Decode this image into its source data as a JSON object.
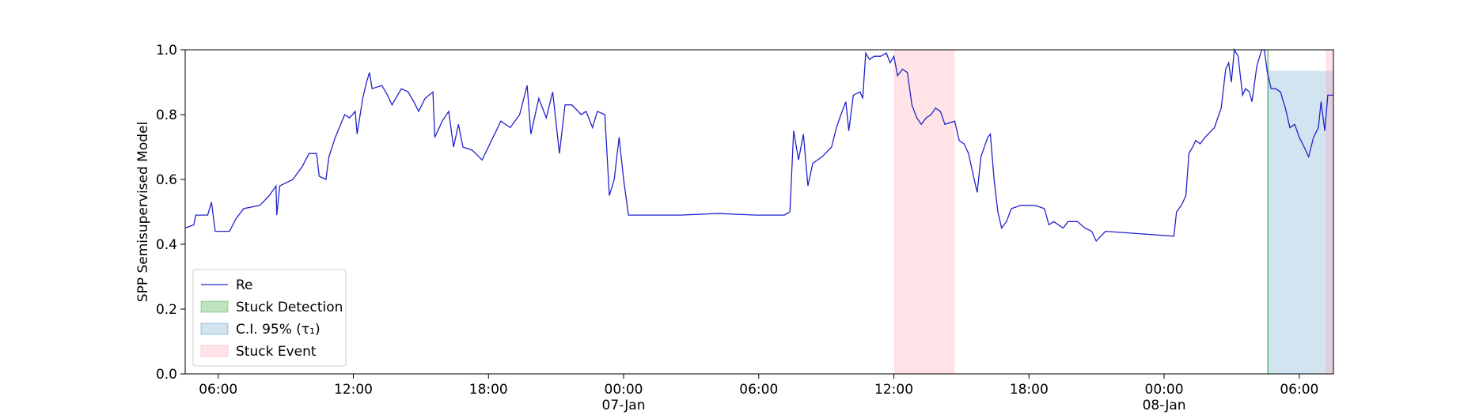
{
  "chart_data": {
    "type": "line",
    "y_label": "SPP Semisupervised Model",
    "xlim": [
      "1900-01-06 04:32",
      "1900-01-08 07:31"
    ],
    "ylim": [
      0,
      1
    ],
    "yticks": [
      {
        "value": 0,
        "label": "0.0"
      },
      0.2,
      0.4,
      0.6,
      0.8,
      {
        "value": 1,
        "label": "1.0"
      }
    ],
    "xticks": [
      {
        "value": "1900-01-06 06:00",
        "label": "06:00"
      },
      {
        "value": "1900-01-06 12:00",
        "label": "12:00"
      },
      {
        "value": "1900-01-06 18:00",
        "label": "18:00"
      },
      {
        "value": "1900-01-07 00:00",
        "label": "00:00\n07-Jan\n1900"
      },
      {
        "value": "1900-01-07 06:00",
        "label": "06:00"
      },
      {
        "value": "1900-01-07 12:00",
        "label": "12:00"
      },
      {
        "value": "1900-01-07 18:00",
        "label": "18:00"
      },
      {
        "value": "1900-01-08 00:00",
        "label": "00:00\n08-Jan"
      },
      {
        "value": "1900-01-08 06:00",
        "label": "06:00"
      }
    ],
    "legend": "lower left",
    "x": [
      "1900-01-06 04:32",
      "1900-01-06 04:55",
      "1900-01-06 05:00",
      "1900-01-06 05:32",
      "1900-01-06 05:42",
      "1900-01-06 05:52",
      "1900-01-06 06:30",
      "1900-01-06 06:48",
      "1900-01-06 07:08",
      "1900-01-06 07:51",
      "1900-01-06 08:16",
      "1900-01-06 08:34",
      "1900-01-06 08:36",
      "1900-01-06 08:44",
      "1900-01-06 09:19",
      "1900-01-06 09:44",
      "1900-01-06 10:02",
      "1900-01-06 10:22",
      "1900-01-06 10:29",
      "1900-01-06 10:47",
      "1900-01-06 10:55",
      "1900-01-06 11:12",
      "1900-01-06 11:37",
      "1900-01-06 11:50",
      "1900-01-06 12:05",
      "1900-01-06 12:10",
      "1900-01-06 12:25",
      "1900-01-06 12:35",
      "1900-01-06 12:43",
      "1900-01-06 12:50",
      "1900-01-06 13:16",
      "1900-01-06 13:31",
      "1900-01-06 13:43",
      "1900-01-06 14:08",
      "1900-01-06 14:26",
      "1900-01-06 14:41",
      "1900-01-06 14:54",
      "1900-01-06 15:11",
      "1900-01-06 15:32",
      "1900-01-06 15:37",
      "1900-01-06 15:57",
      "1900-01-06 16:14",
      "1900-01-06 16:27",
      "1900-01-06 16:40",
      "1900-01-06 16:52",
      "1900-01-06 17:17",
      "1900-01-06 17:43",
      "1900-01-06 18:08",
      "1900-01-06 18:33",
      "1900-01-06 18:58",
      "1900-01-06 19:23",
      "1900-01-06 19:43",
      "1900-01-06 19:53",
      "1900-01-06 20:14",
      "1900-01-06 20:34",
      "1900-01-06 20:51",
      "1900-01-06 21:09",
      "1900-01-06 21:24",
      "1900-01-06 21:42",
      "1900-01-06 22:07",
      "1900-01-06 22:20",
      "1900-01-06 22:37",
      "1900-01-06 22:50",
      "1900-01-06 23:10",
      "1900-01-06 23:22",
      "1900-01-06 23:35",
      "1900-01-06 23:48",
      "1900-01-07 00:00",
      "1900-01-07 00:13",
      "1900-01-07 02:31",
      "1900-01-07 04:12",
      "1900-01-07 05:53",
      "1900-01-07 07:08",
      "1900-01-07 07:23",
      "1900-01-07 07:33",
      "1900-01-07 07:46",
      "1900-01-07 07:59",
      "1900-01-07 08:11",
      "1900-01-07 08:24",
      "1900-01-07 08:49",
      "1900-01-07 09:14",
      "1900-01-07 09:27",
      "1900-01-07 09:39",
      "1900-01-07 09:52",
      "1900-01-07 10:00",
      "1900-01-07 10:12",
      "1900-01-07 10:30",
      "1900-01-07 10:37",
      "1900-01-07 10:45",
      "1900-01-07 10:55",
      "1900-01-07 11:07",
      "1900-01-07 11:25",
      "1900-01-07 11:40",
      "1900-01-07 11:50",
      "1900-01-07 12:00",
      "1900-01-07 12:10",
      "1900-01-07 12:23",
      "1900-01-07 12:36",
      "1900-01-07 12:48",
      "1900-01-07 13:01",
      "1900-01-07 13:13",
      "1900-01-07 13:26",
      "1900-01-07 13:39",
      "1900-01-07 13:51",
      "1900-01-07 14:04",
      "1900-01-07 14:16",
      "1900-01-07 14:42",
      "1900-01-07 14:54",
      "1900-01-07 15:07",
      "1900-01-07 15:19",
      "1900-01-07 15:32",
      "1900-01-07 15:42",
      "1900-01-07 15:52",
      "1900-01-07 16:10",
      "1900-01-07 16:17",
      "1900-01-07 16:27",
      "1900-01-07 16:37",
      "1900-01-07 16:47",
      "1900-01-07 17:00",
      "1900-01-07 17:13",
      "1900-01-07 17:38",
      "1900-01-07 18:16",
      "1900-01-07 18:41",
      "1900-01-07 18:53",
      "1900-01-07 19:06",
      "1900-01-07 19:31",
      "1900-01-07 19:44",
      "1900-01-07 20:09",
      "1900-01-07 20:29",
      "1900-01-07 20:47",
      "1900-01-07 20:59",
      "1900-01-07 21:24",
      "1900-01-08 00:26",
      "1900-01-08 00:33",
      "1900-01-08 00:46",
      "1900-01-08 00:58",
      "1900-01-08 01:06",
      "1900-01-08 01:16",
      "1900-01-08 01:24",
      "1900-01-08 01:36",
      "1900-01-08 01:49",
      "1900-01-08 02:14",
      "1900-01-08 02:32",
      "1900-01-08 02:44",
      "1900-01-08 02:52",
      "1900-01-08 02:59",
      "1900-01-08 03:07",
      "1900-01-08 03:17",
      "1900-01-08 03:29",
      "1900-01-08 03:37",
      "1900-01-08 03:47",
      "1900-01-08 03:54",
      "1900-01-08 04:07",
      "1900-01-08 04:20",
      "1900-01-08 04:27",
      "1900-01-08 04:35",
      "1900-01-08 04:45",
      "1900-01-08 04:57",
      "1900-01-08 05:10",
      "1900-01-08 05:23",
      "1900-01-08 05:35",
      "1900-01-08 05:48",
      "1900-01-08 06:00",
      "1900-01-08 06:13",
      "1900-01-08 06:25",
      "1900-01-08 06:38",
      "1900-01-08 06:51",
      "1900-01-08 06:58",
      "1900-01-08 07:08",
      "1900-01-08 07:16",
      "1900-01-08 07:31"
    ],
    "series": [
      {
        "name": "Re",
        "color": "#2222cc",
        "values": [
          0.45,
          0.46,
          0.49,
          0.49,
          0.53,
          0.44,
          0.44,
          0.48,
          0.51,
          0.52,
          0.55,
          0.58,
          0.49,
          0.58,
          0.6,
          0.64,
          0.68,
          0.68,
          0.61,
          0.6,
          0.67,
          0.73,
          0.8,
          0.79,
          0.81,
          0.74,
          0.85,
          0.9,
          0.93,
          0.88,
          0.89,
          0.86,
          0.83,
          0.88,
          0.87,
          0.84,
          0.81,
          0.85,
          0.87,
          0.73,
          0.78,
          0.81,
          0.7,
          0.77,
          0.7,
          0.69,
          0.66,
          0.72,
          0.78,
          0.76,
          0.8,
          0.89,
          0.74,
          0.85,
          0.79,
          0.87,
          0.68,
          0.83,
          0.83,
          0.8,
          0.81,
          0.76,
          0.81,
          0.8,
          0.55,
          0.6,
          0.73,
          0.6,
          0.49,
          0.49,
          0.495,
          0.49,
          0.49,
          0.5,
          0.75,
          0.66,
          0.74,
          0.58,
          0.65,
          0.67,
          0.7,
          0.76,
          0.8,
          0.84,
          0.75,
          0.86,
          0.87,
          0.85,
          0.99,
          0.97,
          0.98,
          0.98,
          0.99,
          0.96,
          0.98,
          0.92,
          0.94,
          0.93,
          0.83,
          0.79,
          0.77,
          0.79,
          0.8,
          0.82,
          0.81,
          0.77,
          0.78,
          0.72,
          0.71,
          0.68,
          0.61,
          0.56,
          0.67,
          0.73,
          0.74,
          0.6,
          0.5,
          0.45,
          0.47,
          0.51,
          0.52,
          0.52,
          0.51,
          0.46,
          0.47,
          0.45,
          0.47,
          0.47,
          0.45,
          0.44,
          0.41,
          0.44,
          0.425,
          0.5,
          0.52,
          0.55,
          0.68,
          0.7,
          0.72,
          0.71,
          0.73,
          0.76,
          0.82,
          0.94,
          0.96,
          0.9,
          1.0,
          0.98,
          0.86,
          0.88,
          0.87,
          0.84,
          0.95,
          1.0,
          1.0,
          0.93,
          0.88,
          0.88,
          0.87,
          0.82,
          0.76,
          0.77,
          0.73,
          0.7,
          0.67,
          0.73,
          0.76,
          0.84,
          0.75,
          0.86,
          0.86
        ]
      }
    ],
    "regions": [
      {
        "name": "Stuck Detection",
        "color": "#2ca02c",
        "ranges": [
          [
            "1900-01-08 04:35",
            "1900-01-08 04:38"
          ]
        ]
      },
      {
        "name": "C.I. 95% (τ₁)",
        "color": "#1f77b4",
        "ranges": [
          [
            "1900-01-08 04:35",
            "1900-01-08 07:31"
          ]
        ],
        "top": 0.935
      },
      {
        "name": "Stuck Event",
        "color": "#ff9aa8",
        "ranges": [
          [
            "1900-01-07 12:00",
            "1900-01-07 14:42"
          ],
          [
            "1900-01-08 07:11",
            "1900-01-08 07:31"
          ]
        ]
      }
    ]
  }
}
